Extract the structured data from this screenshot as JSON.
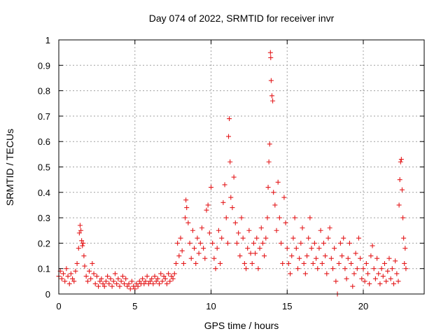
{
  "chart_data": {
    "type": "scatter",
    "title": "Day 074 of 2022, SRMTID for receiver invr",
    "xlabel": "GPS time / hours",
    "ylabel": "SRMTID / TECUs",
    "xlim": [
      0,
      24
    ],
    "ylim": [
      0,
      1
    ],
    "xticks": [
      0,
      5,
      10,
      15,
      20
    ],
    "yticks": [
      0,
      0.1,
      0.2,
      0.3,
      0.4,
      0.5,
      0.6,
      0.7,
      0.8,
      0.9,
      1
    ],
    "xtick_labels": [
      "0",
      "5",
      "10",
      "15",
      "20"
    ],
    "ytick_labels": [
      "0",
      "0.1",
      "0.2",
      "0.3",
      "0.4",
      "0.5",
      "0.6",
      "0.7",
      "0.8",
      "0.9",
      "1"
    ],
    "grid": true,
    "marker": "+",
    "color": "#e41a1c",
    "series": [
      {
        "name": "SRMTID",
        "points": [
          [
            0.0,
            0.07
          ],
          [
            0.1,
            0.09
          ],
          [
            0.2,
            0.06
          ],
          [
            0.3,
            0.08
          ],
          [
            0.4,
            0.05
          ],
          [
            0.5,
            0.1
          ],
          [
            0.6,
            0.07
          ],
          [
            0.7,
            0.04
          ],
          [
            0.8,
            0.08
          ],
          [
            0.9,
            0.06
          ],
          [
            1.0,
            0.05
          ],
          [
            1.1,
            0.09
          ],
          [
            1.2,
            0.12
          ],
          [
            1.3,
            0.18
          ],
          [
            1.35,
            0.24
          ],
          [
            1.4,
            0.27
          ],
          [
            1.45,
            0.25
          ],
          [
            1.5,
            0.21
          ],
          [
            1.55,
            0.19
          ],
          [
            1.6,
            0.2
          ],
          [
            1.65,
            0.15
          ],
          [
            1.7,
            0.11
          ],
          [
            1.8,
            0.07
          ],
          [
            1.9,
            0.05
          ],
          [
            2.0,
            0.09
          ],
          [
            2.1,
            0.06
          ],
          [
            2.2,
            0.12
          ],
          [
            2.3,
            0.08
          ],
          [
            2.4,
            0.04
          ],
          [
            2.5,
            0.07
          ],
          [
            2.6,
            0.03
          ],
          [
            2.7,
            0.05
          ],
          [
            2.8,
            0.06
          ],
          [
            2.9,
            0.04
          ],
          [
            3.0,
            0.03
          ],
          [
            3.1,
            0.05
          ],
          [
            3.2,
            0.07
          ],
          [
            3.3,
            0.04
          ],
          [
            3.4,
            0.06
          ],
          [
            3.5,
            0.03
          ],
          [
            3.6,
            0.05
          ],
          [
            3.7,
            0.08
          ],
          [
            3.8,
            0.04
          ],
          [
            3.9,
            0.06
          ],
          [
            4.0,
            0.03
          ],
          [
            4.1,
            0.05
          ],
          [
            4.2,
            0.07
          ],
          [
            4.3,
            0.04
          ],
          [
            4.4,
            0.06
          ],
          [
            4.5,
            0.03
          ],
          [
            4.6,
            0.04
          ],
          [
            4.7,
            0.02
          ],
          [
            4.8,
            0.05
          ],
          [
            4.9,
            0.03
          ],
          [
            5.0,
            0.02
          ],
          [
            5.1,
            0.04
          ],
          [
            5.2,
            0.03
          ],
          [
            5.3,
            0.05
          ],
          [
            5.4,
            0.04
          ],
          [
            5.5,
            0.06
          ],
          [
            5.6,
            0.04
          ],
          [
            5.7,
            0.05
          ],
          [
            5.8,
            0.07
          ],
          [
            5.9,
            0.04
          ],
          [
            6.0,
            0.05
          ],
          [
            6.1,
            0.06
          ],
          [
            6.2,
            0.04
          ],
          [
            6.3,
            0.07
          ],
          [
            6.4,
            0.05
          ],
          [
            6.5,
            0.06
          ],
          [
            6.6,
            0.04
          ],
          [
            6.7,
            0.08
          ],
          [
            6.8,
            0.05
          ],
          [
            6.9,
            0.07
          ],
          [
            7.0,
            0.06
          ],
          [
            7.1,
            0.04
          ],
          [
            7.2,
            0.08
          ],
          [
            7.3,
            0.05
          ],
          [
            7.4,
            0.07
          ],
          [
            7.5,
            0.06
          ],
          [
            7.6,
            0.08
          ],
          [
            7.7,
            0.12
          ],
          [
            7.8,
            0.2
          ],
          [
            7.9,
            0.15
          ],
          [
            8.0,
            0.22
          ],
          [
            8.1,
            0.17
          ],
          [
            8.2,
            0.12
          ],
          [
            8.3,
            0.3
          ],
          [
            8.35,
            0.37
          ],
          [
            8.4,
            0.34
          ],
          [
            8.5,
            0.28
          ],
          [
            8.6,
            0.2
          ],
          [
            8.7,
            0.14
          ],
          [
            8.8,
            0.25
          ],
          [
            8.9,
            0.18
          ],
          [
            9.0,
            0.12
          ],
          [
            9.1,
            0.22
          ],
          [
            9.2,
            0.16
          ],
          [
            9.3,
            0.2
          ],
          [
            9.4,
            0.26
          ],
          [
            9.5,
            0.18
          ],
          [
            9.6,
            0.14
          ],
          [
            9.7,
            0.33
          ],
          [
            9.8,
            0.35
          ],
          [
            9.9,
            0.24
          ],
          [
            10.0,
            0.42
          ],
          [
            10.1,
            0.2
          ],
          [
            10.2,
            0.14
          ],
          [
            10.3,
            0.1
          ],
          [
            10.4,
            0.18
          ],
          [
            10.5,
            0.25
          ],
          [
            10.6,
            0.12
          ],
          [
            10.7,
            0.22
          ],
          [
            10.8,
            0.36
          ],
          [
            10.9,
            0.43
          ],
          [
            11.0,
            0.3
          ],
          [
            11.1,
            0.2
          ],
          [
            11.15,
            0.62
          ],
          [
            11.2,
            0.69
          ],
          [
            11.25,
            0.52
          ],
          [
            11.3,
            0.38
          ],
          [
            11.4,
            0.34
          ],
          [
            11.5,
            0.46
          ],
          [
            11.6,
            0.28
          ],
          [
            11.7,
            0.2
          ],
          [
            11.8,
            0.24
          ],
          [
            11.9,
            0.15
          ],
          [
            12.0,
            0.3
          ],
          [
            12.1,
            0.22
          ],
          [
            12.2,
            0.12
          ],
          [
            12.3,
            0.1
          ],
          [
            12.4,
            0.18
          ],
          [
            12.5,
            0.25
          ],
          [
            12.6,
            0.16
          ],
          [
            12.7,
            0.12
          ],
          [
            12.8,
            0.2
          ],
          [
            12.9,
            0.16
          ],
          [
            13.0,
            0.22
          ],
          [
            13.1,
            0.1
          ],
          [
            13.2,
            0.18
          ],
          [
            13.3,
            0.26
          ],
          [
            13.4,
            0.2
          ],
          [
            13.5,
            0.15
          ],
          [
            13.6,
            0.22
          ],
          [
            13.7,
            0.3
          ],
          [
            13.75,
            0.42
          ],
          [
            13.8,
            0.52
          ],
          [
            13.85,
            0.59
          ],
          [
            13.9,
            0.95
          ],
          [
            13.92,
            0.93
          ],
          [
            13.95,
            0.84
          ],
          [
            14.0,
            0.78
          ],
          [
            14.05,
            0.76
          ],
          [
            14.1,
            0.4
          ],
          [
            14.2,
            0.35
          ],
          [
            14.3,
            0.25
          ],
          [
            14.4,
            0.44
          ],
          [
            14.5,
            0.3
          ],
          [
            14.6,
            0.2
          ],
          [
            14.7,
            0.12
          ],
          [
            14.8,
            0.38
          ],
          [
            14.9,
            0.28
          ],
          [
            15.0,
            0.18
          ],
          [
            15.1,
            0.12
          ],
          [
            15.2,
            0.08
          ],
          [
            15.3,
            0.15
          ],
          [
            15.4,
            0.22
          ],
          [
            15.5,
            0.3
          ],
          [
            15.6,
            0.18
          ],
          [
            15.7,
            0.1
          ],
          [
            15.8,
            0.14
          ],
          [
            15.9,
            0.2
          ],
          [
            16.0,
            0.26
          ],
          [
            16.1,
            0.12
          ],
          [
            16.2,
            0.08
          ],
          [
            16.3,
            0.15
          ],
          [
            16.4,
            0.22
          ],
          [
            16.5,
            0.3
          ],
          [
            16.6,
            0.18
          ],
          [
            16.7,
            0.12
          ],
          [
            16.8,
            0.2
          ],
          [
            16.9,
            0.14
          ],
          [
            17.0,
            0.1
          ],
          [
            17.1,
            0.18
          ],
          [
            17.2,
            0.25
          ],
          [
            17.3,
            0.12
          ],
          [
            17.4,
            0.2
          ],
          [
            17.5,
            0.15
          ],
          [
            17.6,
            0.08
          ],
          [
            17.7,
            0.22
          ],
          [
            17.8,
            0.26
          ],
          [
            17.9,
            0.14
          ],
          [
            18.0,
            0.1
          ],
          [
            18.1,
            0.18
          ],
          [
            18.2,
            0.05
          ],
          [
            18.3,
            0.0
          ],
          [
            18.4,
            0.12
          ],
          [
            18.5,
            0.2
          ],
          [
            18.6,
            0.15
          ],
          [
            18.7,
            0.22
          ],
          [
            18.8,
            0.1
          ],
          [
            18.9,
            0.06
          ],
          [
            19.0,
            0.14
          ],
          [
            19.1,
            0.2
          ],
          [
            19.2,
            0.12
          ],
          [
            19.3,
            0.03
          ],
          [
            19.4,
            0.08
          ],
          [
            19.5,
            0.16
          ],
          [
            19.6,
            0.1
          ],
          [
            19.7,
            0.22
          ],
          [
            19.8,
            0.14
          ],
          [
            19.9,
            0.06
          ],
          [
            20.0,
            0.1
          ],
          [
            20.1,
            0.05
          ],
          [
            20.2,
            0.12
          ],
          [
            20.3,
            0.08
          ],
          [
            20.4,
            0.04
          ],
          [
            20.5,
            0.15
          ],
          [
            20.6,
            0.19
          ],
          [
            20.7,
            0.1
          ],
          [
            20.8,
            0.06
          ],
          [
            20.9,
            0.14
          ],
          [
            21.0,
            0.08
          ],
          [
            21.1,
            0.04
          ],
          [
            21.2,
            0.1
          ],
          [
            21.3,
            0.07
          ],
          [
            21.4,
            0.12
          ],
          [
            21.5,
            0.05
          ],
          [
            21.6,
            0.09
          ],
          [
            21.7,
            0.14
          ],
          [
            21.8,
            0.06
          ],
          [
            21.9,
            0.1
          ],
          [
            22.0,
            0.04
          ],
          [
            22.1,
            0.13
          ],
          [
            22.2,
            0.08
          ],
          [
            22.3,
            0.05
          ],
          [
            22.35,
            0.35
          ],
          [
            22.4,
            0.45
          ],
          [
            22.45,
            0.52
          ],
          [
            22.5,
            0.53
          ],
          [
            22.55,
            0.41
          ],
          [
            22.6,
            0.3
          ],
          [
            22.65,
            0.22
          ],
          [
            22.7,
            0.12
          ],
          [
            22.75,
            0.18
          ],
          [
            22.8,
            0.1
          ]
        ]
      }
    ]
  }
}
